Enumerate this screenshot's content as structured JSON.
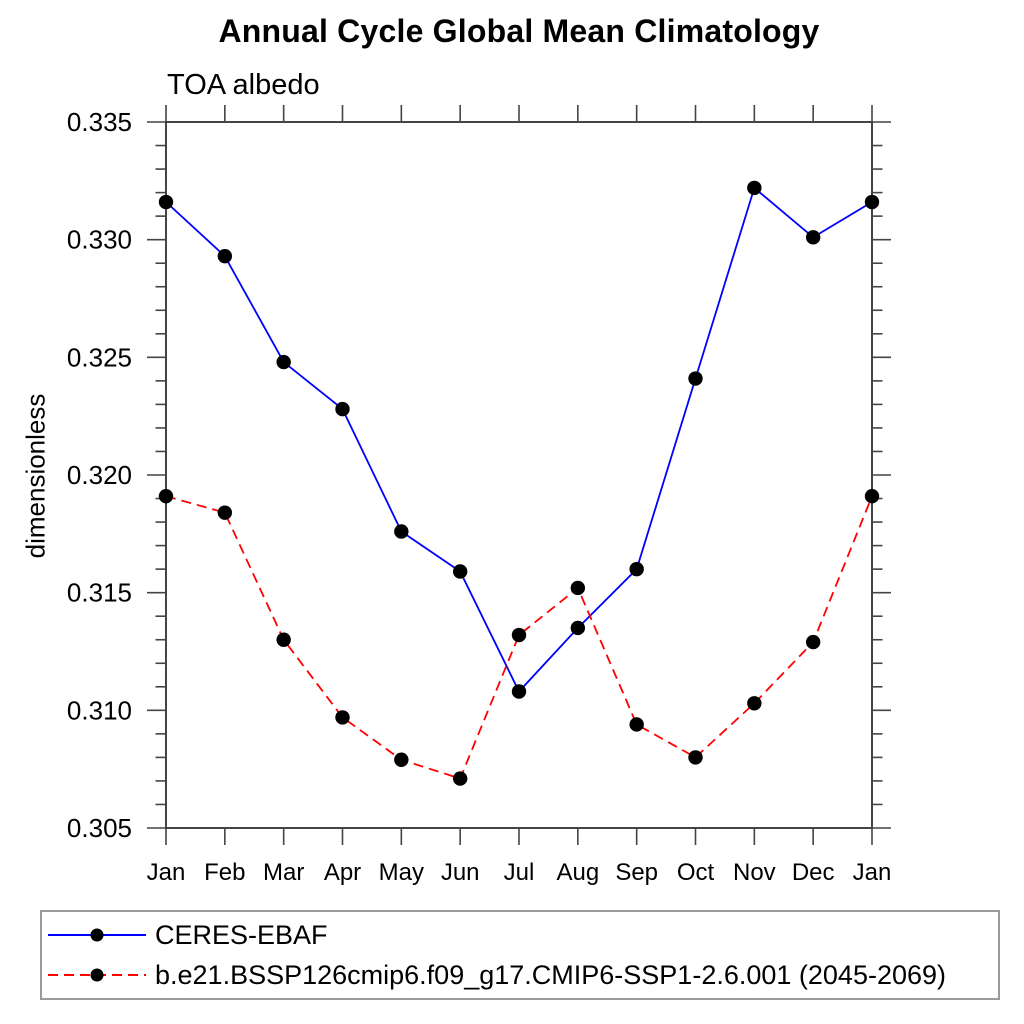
{
  "title": "Annual Cycle Global Mean Climatology",
  "subtitle": "TOA albedo",
  "ylabel": "dimensionless",
  "legend": {
    "items": [
      {
        "label": "CERES-EBAF",
        "color": "#0000ff",
        "dash": "none"
      },
      {
        "label": "b.e21.BSSP126cmip6.f09_g17.CMIP6-SSP1-2.6.001 (2045-2069)",
        "color": "#ff0000",
        "dash": "10 6"
      }
    ]
  },
  "chart_data": {
    "type": "line",
    "title": "Annual Cycle Global Mean Climatology",
    "subtitle": "TOA albedo",
    "xlabel": "",
    "ylabel": "dimensionless",
    "categories": [
      "Jan",
      "Feb",
      "Mar",
      "Apr",
      "May",
      "Jun",
      "Jul",
      "Aug",
      "Sep",
      "Oct",
      "Nov",
      "Dec",
      "Jan"
    ],
    "series": [
      {
        "name": "CERES-EBAF",
        "color": "#0000ff",
        "line_style": "solid",
        "marker": "filled-circle",
        "marker_color": "#000000",
        "values": [
          0.3316,
          0.3293,
          0.3248,
          0.3228,
          0.3176,
          0.3159,
          0.3108,
          0.3135,
          0.316,
          0.3241,
          0.3322,
          0.3301,
          0.3316
        ]
      },
      {
        "name": "b.e21.BSSP126cmip6.f09_g17.CMIP6-SSP1-2.6.001 (2045-2069)",
        "color": "#ff0000",
        "line_style": "dashed",
        "marker": "filled-circle",
        "marker_color": "#000000",
        "values": [
          0.3191,
          0.3184,
          0.313,
          0.3097,
          0.3079,
          0.3071,
          0.3132,
          0.3152,
          0.3094,
          0.308,
          0.3103,
          0.3129,
          0.3191
        ]
      }
    ],
    "ylim": [
      0.305,
      0.335
    ],
    "ytick_values": [
      0.305,
      0.31,
      0.315,
      0.32,
      0.325,
      0.33,
      0.335
    ],
    "ytick_labels": [
      "0.305",
      "0.310",
      "0.315",
      "0.320",
      "0.325",
      "0.330",
      "0.335"
    ],
    "ytick_minor_step": 0.001,
    "grid": false,
    "legend_position": "bottom-left",
    "axis_color": "#444444"
  }
}
